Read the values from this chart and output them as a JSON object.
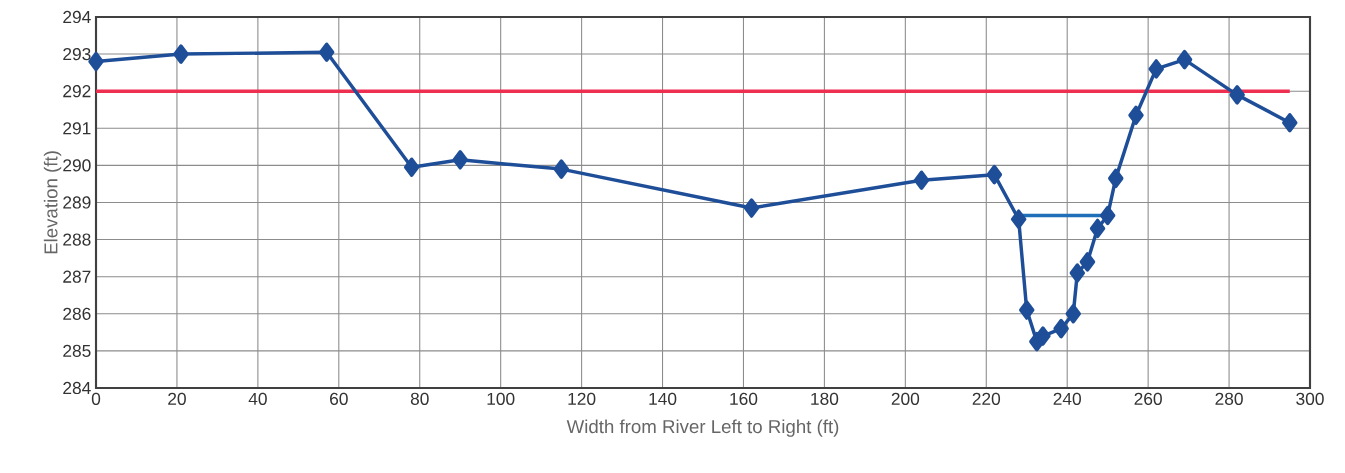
{
  "chart_data": {
    "type": "line",
    "xlabel": "Width from River Left to Right (ft)",
    "ylabel": "Elevation (ft)",
    "xlim": [
      0,
      300
    ],
    "ylim": [
      284,
      294
    ],
    "xticks": [
      0,
      20,
      40,
      60,
      80,
      100,
      120,
      140,
      160,
      180,
      200,
      220,
      240,
      260,
      280,
      300
    ],
    "yticks": [
      284,
      285,
      286,
      287,
      288,
      289,
      290,
      291,
      292,
      293,
      294
    ],
    "grid": true,
    "marker": "diamond",
    "line_style": "solid",
    "series": [
      {
        "color": "#ee2f4f",
        "marker": "none",
        "x": [
          0,
          295
        ],
        "values": [
          292,
          292
        ]
      },
      {
        "color": "#1f6fb8",
        "marker": "none",
        "x": [
          228,
          250
        ],
        "values": [
          288.65,
          288.65
        ]
      },
      {
        "color": "#1f4e99",
        "x": [
          0,
          21,
          57,
          78,
          90,
          115,
          162,
          204,
          222,
          228,
          230,
          232.5,
          234,
          238.5,
          241.5,
          242.5,
          245,
          247.5,
          250,
          252,
          257,
          262,
          269,
          282,
          295
        ],
        "values": [
          292.8,
          293,
          293.05,
          289.95,
          290.15,
          289.9,
          288.85,
          289.6,
          289.75,
          288.55,
          286.1,
          285.25,
          285.4,
          285.6,
          286.0,
          287.1,
          287.4,
          288.3,
          288.65,
          289.65,
          291.35,
          292.6,
          292.85,
          291.9,
          291.15
        ]
      }
    ]
  }
}
